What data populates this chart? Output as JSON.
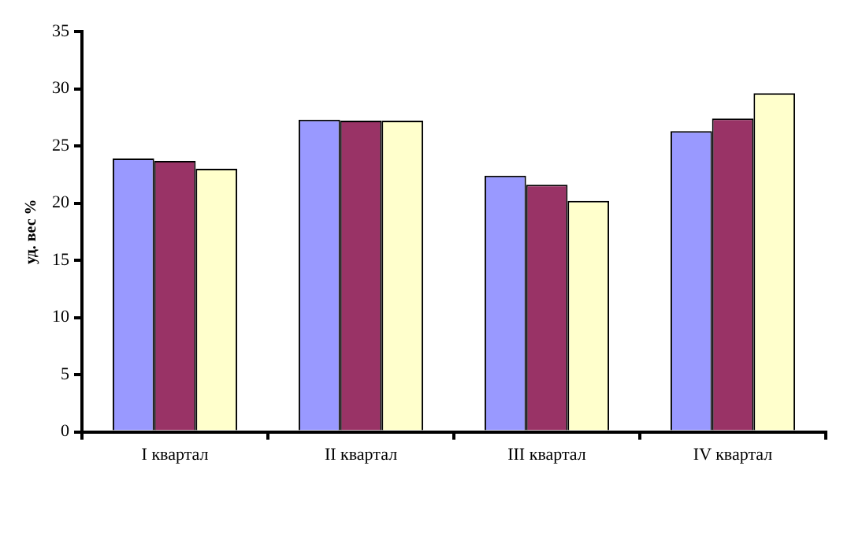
{
  "chart_data": {
    "type": "bar",
    "ylabel": "уд. вес %",
    "categories": [
      "I квартал",
      "II квартал",
      "III квартал",
      "IV квартал"
    ],
    "series": [
      {
        "color": "#9999ff",
        "values": [
          23.9,
          27.3,
          22.4,
          26.3
        ]
      },
      {
        "color": "#993366",
        "values": [
          23.7,
          27.2,
          21.6,
          27.4
        ]
      },
      {
        "color": "#ffffcc",
        "values": [
          23.0,
          27.2,
          20.2,
          29.6
        ]
      }
    ],
    "ylim": [
      0,
      35
    ],
    "yticks": [
      0,
      5,
      10,
      15,
      20,
      25,
      30,
      35
    ],
    "grid": false,
    "legend": false
  }
}
